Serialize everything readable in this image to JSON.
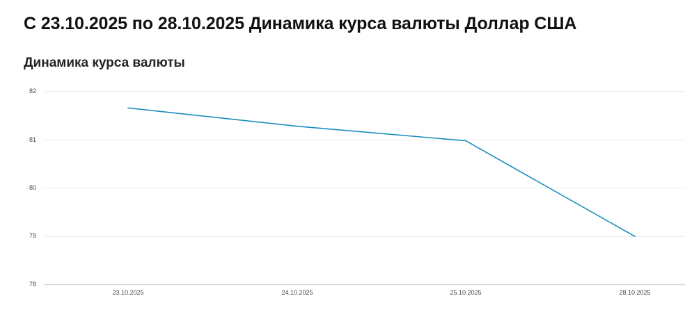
{
  "page": {
    "title": "С 23.10.2025 по 28.10.2025 Динамика курса валюты Доллар США"
  },
  "section": {
    "title": "Динамика курса валюты"
  },
  "colors": {
    "line": "#1a8bbf",
    "grid": "#ebedf0",
    "axis": "#d6dae3",
    "tick_text": "#444444"
  },
  "chart_data": {
    "type": "line",
    "title": "Динамика курса валюты",
    "xlabel": "",
    "ylabel": "",
    "categories": [
      "23.10.2025",
      "24.10.2025",
      "25.10.2025",
      "28.10.2025"
    ],
    "series": [
      {
        "name": "Доллар США",
        "values": [
          81.65,
          81.27,
          80.97,
          78.99
        ]
      }
    ],
    "ylim": [
      78,
      82
    ],
    "yticks": [
      "82",
      "81",
      "80",
      "79",
      "78"
    ],
    "grid": true,
    "legend": "none"
  }
}
